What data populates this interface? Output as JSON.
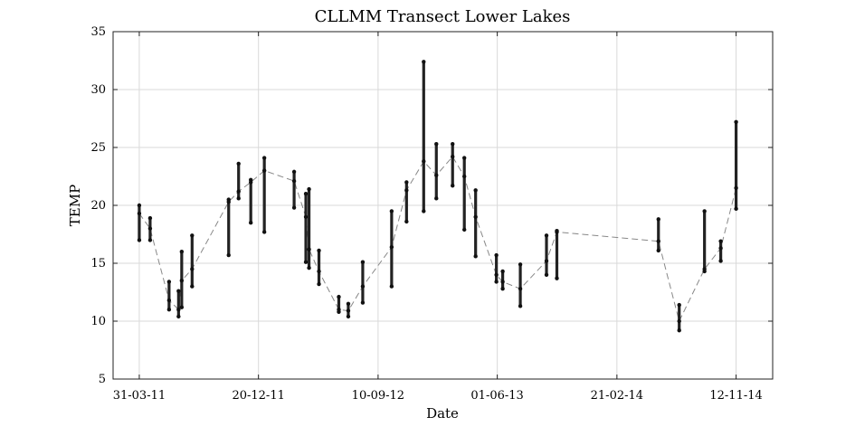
{
  "chart_data": {
    "type": "scatter",
    "title": "CLLMM Transect Lower Lakes",
    "xlabel": "Date",
    "ylabel": "TEMP",
    "xlim": [
      "2011-02-01",
      "2015-02-01"
    ],
    "ylim": [
      5,
      35
    ],
    "grid": true,
    "x_ticks": [
      {
        "date": "2011-03-31",
        "label": "31-03-11"
      },
      {
        "date": "2011-12-20",
        "label": "20-12-11"
      },
      {
        "date": "2012-09-10",
        "label": "10-09-12"
      },
      {
        "date": "2013-06-01",
        "label": "01-06-13"
      },
      {
        "date": "2014-02-21",
        "label": "21-02-14"
      },
      {
        "date": "2014-11-12",
        "label": "12-11-14"
      }
    ],
    "y_ticks": [
      5,
      10,
      15,
      20,
      25,
      30,
      35
    ],
    "series": [
      {
        "color": "#111111",
        "points": [
          {
            "date": "2011-03-31",
            "min": 17.0,
            "max": 20.0,
            "mean": 19.3
          },
          {
            "date": "2011-04-24",
            "min": 17.0,
            "max": 18.9,
            "mean": 18.0
          },
          {
            "date": "2011-06-05",
            "min": 11.0,
            "max": 13.4,
            "mean": 11.8
          },
          {
            "date": "2011-06-26",
            "min": 10.4,
            "max": 12.6,
            "mean": 11.0
          },
          {
            "date": "2011-07-03",
            "min": 11.2,
            "max": 16.0,
            "mean": 13.5
          },
          {
            "date": "2011-07-26",
            "min": 13.0,
            "max": 17.4,
            "mean": 14.5
          },
          {
            "date": "2011-10-15",
            "min": 15.7,
            "max": 20.5,
            "mean": 20.3
          },
          {
            "date": "2011-11-06",
            "min": 20.6,
            "max": 23.6,
            "mean": 21.2
          },
          {
            "date": "2011-12-03",
            "min": 18.5,
            "max": 22.2,
            "mean": 22.0
          },
          {
            "date": "2012-01-02",
            "min": 17.7,
            "max": 24.1,
            "mean": 23.0
          },
          {
            "date": "2012-03-08",
            "min": 19.8,
            "max": 22.9,
            "mean": 22.1
          },
          {
            "date": "2012-04-03",
            "min": 15.1,
            "max": 21.0,
            "mean": 19.0
          },
          {
            "date": "2012-04-10",
            "min": 14.6,
            "max": 21.4,
            "mean": 16.2
          },
          {
            "date": "2012-05-02",
            "min": 13.2,
            "max": 16.1,
            "mean": 14.3
          },
          {
            "date": "2012-06-15",
            "min": 10.8,
            "max": 12.1,
            "mean": 11.0
          },
          {
            "date": "2012-07-06",
            "min": 10.4,
            "max": 11.5,
            "mean": 10.9
          },
          {
            "date": "2012-08-07",
            "min": 11.6,
            "max": 15.1,
            "mean": 13.0
          },
          {
            "date": "2012-10-10",
            "min": 13.0,
            "max": 19.5,
            "mean": 16.4
          },
          {
            "date": "2012-11-12",
            "min": 18.6,
            "max": 22.0,
            "mean": 21.3
          },
          {
            "date": "2012-12-20",
            "min": 19.5,
            "max": 32.4,
            "mean": 23.8
          },
          {
            "date": "2013-01-17",
            "min": 20.6,
            "max": 25.3,
            "mean": 22.6
          },
          {
            "date": "2013-02-22",
            "min": 21.7,
            "max": 25.3,
            "mean": 24.2
          },
          {
            "date": "2013-03-20",
            "min": 17.9,
            "max": 24.1,
            "mean": 22.5
          },
          {
            "date": "2013-04-14",
            "min": 15.6,
            "max": 21.3,
            "mean": 19.0
          },
          {
            "date": "2013-05-30",
            "min": 13.4,
            "max": 15.7,
            "mean": 14.0
          },
          {
            "date": "2013-06-13",
            "min": 12.8,
            "max": 14.3,
            "mean": 13.4
          },
          {
            "date": "2013-07-22",
            "min": 11.3,
            "max": 14.9,
            "mean": 12.8
          },
          {
            "date": "2013-09-18",
            "min": 14.0,
            "max": 17.4,
            "mean": 15.2
          },
          {
            "date": "2013-10-11",
            "min": 13.7,
            "max": 17.8,
            "mean": 17.7
          },
          {
            "date": "2014-05-24",
            "min": 16.1,
            "max": 18.8,
            "mean": 16.9
          },
          {
            "date": "2014-07-09",
            "min": 9.2,
            "max": 11.4,
            "mean": 10.0
          },
          {
            "date": "2014-09-03",
            "min": 14.3,
            "max": 19.5,
            "mean": 14.5
          },
          {
            "date": "2014-10-09",
            "min": 15.2,
            "max": 16.9,
            "mean": 16.3
          },
          {
            "date": "2014-11-12",
            "min": 19.7,
            "max": 27.2,
            "mean": 21.5
          }
        ]
      }
    ]
  }
}
